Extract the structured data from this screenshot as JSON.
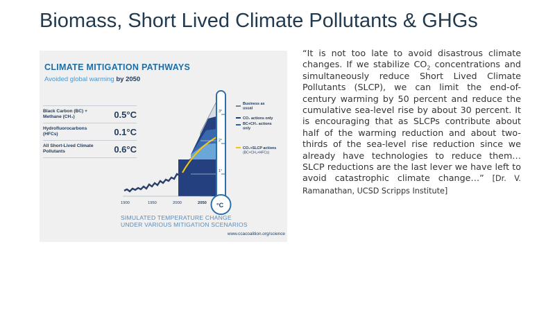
{
  "slide": {
    "title": "Biomass, Short Lived Climate Pollutants & GHGs"
  },
  "figure": {
    "title": "CLIMATE MITIGATION PATHWAYS",
    "subtitle_pre": "Avoided global warming ",
    "subtitle_bold": "by 2050",
    "stats": [
      {
        "label": "Black Carbon (BC) + Methane (CH₄)",
        "value": "0.5°C"
      },
      {
        "label": "Hydrofluorocarbons (HFCs)",
        "value": "0.1°C"
      },
      {
        "label": "All Short-Lived Climate Pollutants",
        "value": "0.6°C"
      }
    ],
    "x_ticks": [
      "1900",
      "1950",
      "2000",
      "2050"
    ],
    "thermo_ticks": [
      "3°",
      "2°",
      "1°"
    ],
    "unit": "°C",
    "legend": [
      {
        "label_line1": "Business as",
        "label_line2": "usual",
        "color": "#7a828a"
      },
      {
        "label_line1": "CO₂ actions only",
        "label_line2": "",
        "color": "#1f3a7a"
      },
      {
        "label_line1": "BC+CH₄ actions",
        "label_line2": "only",
        "color": "#2f5fa8"
      },
      {
        "label_line1": "CO₂+SLCP actions",
        "label_line2": "(BC+CH₄+HFCs)",
        "color": "#f0c419"
      }
    ],
    "caption_line1": "SIMULATED TEMPERATURE CHANGE",
    "caption_line2": "UNDER VARIOUS MITIGATION SCENARIOS",
    "source": "www.ccacoalition.org/science",
    "colors": {
      "title": "#1b6ea8",
      "dark_navy": "#1f3a5a",
      "bau_fill": "#d7dde4",
      "co2_fill": "#24407e",
      "bc_fill": "#3a68ad",
      "slcp_fill": "#6aa6d8",
      "yellow": "#f0c419",
      "thermometer": "#2c6eaa"
    }
  },
  "quote": {
    "part1": "“It is not too late to avoid disastrous climate changes. If we stabilize CO",
    "sub": "2",
    "part2": " concentrations and simultaneously reduce Short Lived Climate Pollutants (SLCP), we can limit the end-of-century warming by 50 percent and reduce the cumulative sea-level rise by about 30 percent. It is encouraging that as SLCPs contribute about half of the warming reduction and about two-thirds of the sea-level rise reduction since we already have technologies to reduce them… SLCP reductions are the last lever we have left to avoid catastrophic climate change…” ",
    "attribution": "[Dr. V. Ramanathan, UCSD Scripps Institute]"
  }
}
